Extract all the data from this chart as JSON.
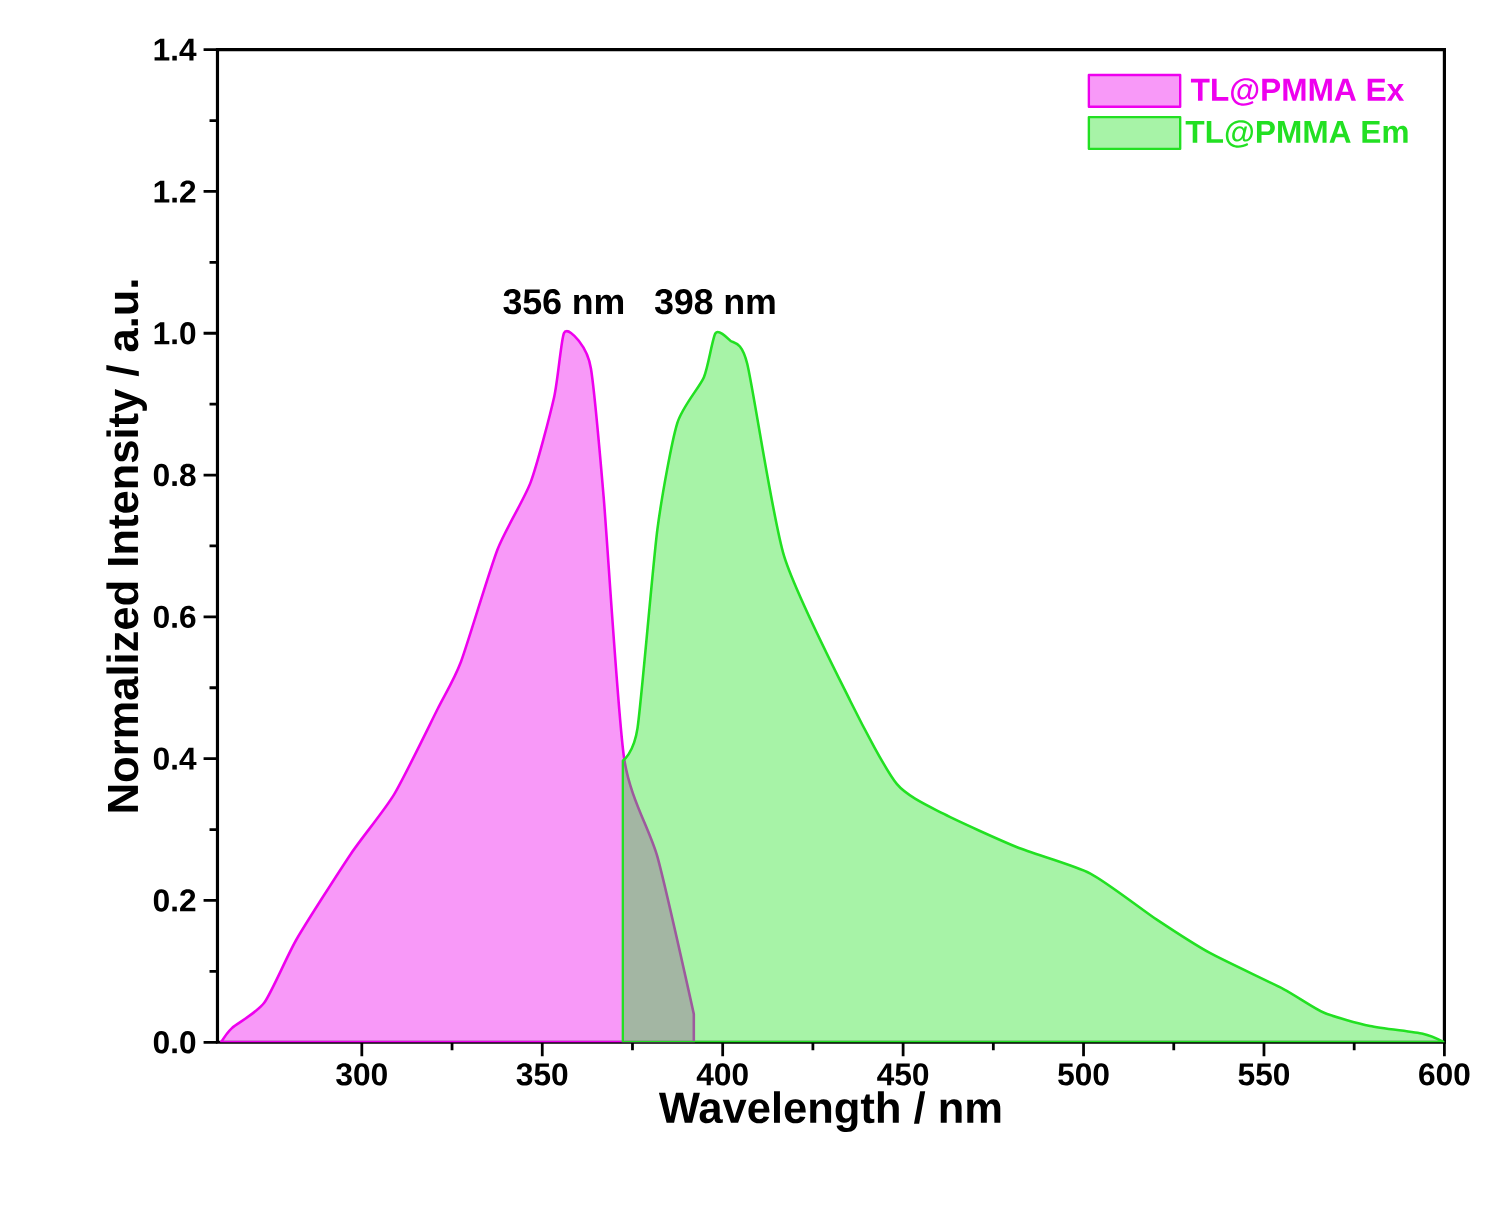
{
  "chart_data": {
    "type": "area",
    "xlabel": "Wavelength / nm",
    "ylabel": "Normalized Intensity / a.u.",
    "xlim": [
      260,
      600
    ],
    "ylim": [
      0,
      1.4
    ],
    "xticks": [
      300,
      350,
      400,
      450,
      500,
      550,
      600
    ],
    "yticks": [
      {
        "value": 0,
        "label": "0.0"
      },
      0.2,
      0.4,
      0.6,
      0.8,
      {
        "value": 1,
        "label": "1.0"
      },
      1.2,
      1.4
    ],
    "legend": "top right",
    "annotations": [
      {
        "text": "356 nm",
        "x": 356,
        "y": 1.0
      },
      {
        "text": "398 nm",
        "x": 398,
        "y": 1.0
      }
    ],
    "series": [
      {
        "name": "TL@PMMA  Ex",
        "color": "#ee00ee",
        "x": [
          261,
          264,
          273,
          282,
          297,
          309,
          321,
          327.5,
          337.6,
          346.8,
          353.3,
          356,
          360,
          363.5,
          367,
          372.7,
          382,
          392
        ],
        "values": [
          0.0,
          0.02,
          0.056,
          0.146,
          0.266,
          0.35,
          0.47,
          0.537,
          0.695,
          0.79,
          0.91,
          1.0,
          0.99,
          0.95,
          0.77,
          0.4,
          0.26,
          0.04
        ]
      },
      {
        "name": "TL@PMMA  Em",
        "color": "#22e022",
        "x": [
          372.3,
          376.4,
          381.9,
          387.4,
          394.8,
          398,
          402,
          406.8,
          417,
          435.4,
          448.3,
          461.3,
          481.6,
          501.9,
          520.3,
          535,
          555.4,
          566.5,
          579.4,
          594,
          600
        ],
        "values": [
          0.397,
          0.443,
          0.723,
          0.873,
          0.938,
          1.0,
          0.99,
          0.957,
          0.686,
          0.481,
          0.364,
          0.322,
          0.275,
          0.238,
          0.173,
          0.126,
          0.075,
          0.042,
          0.023,
          0.012,
          0.0
        ]
      }
    ]
  }
}
